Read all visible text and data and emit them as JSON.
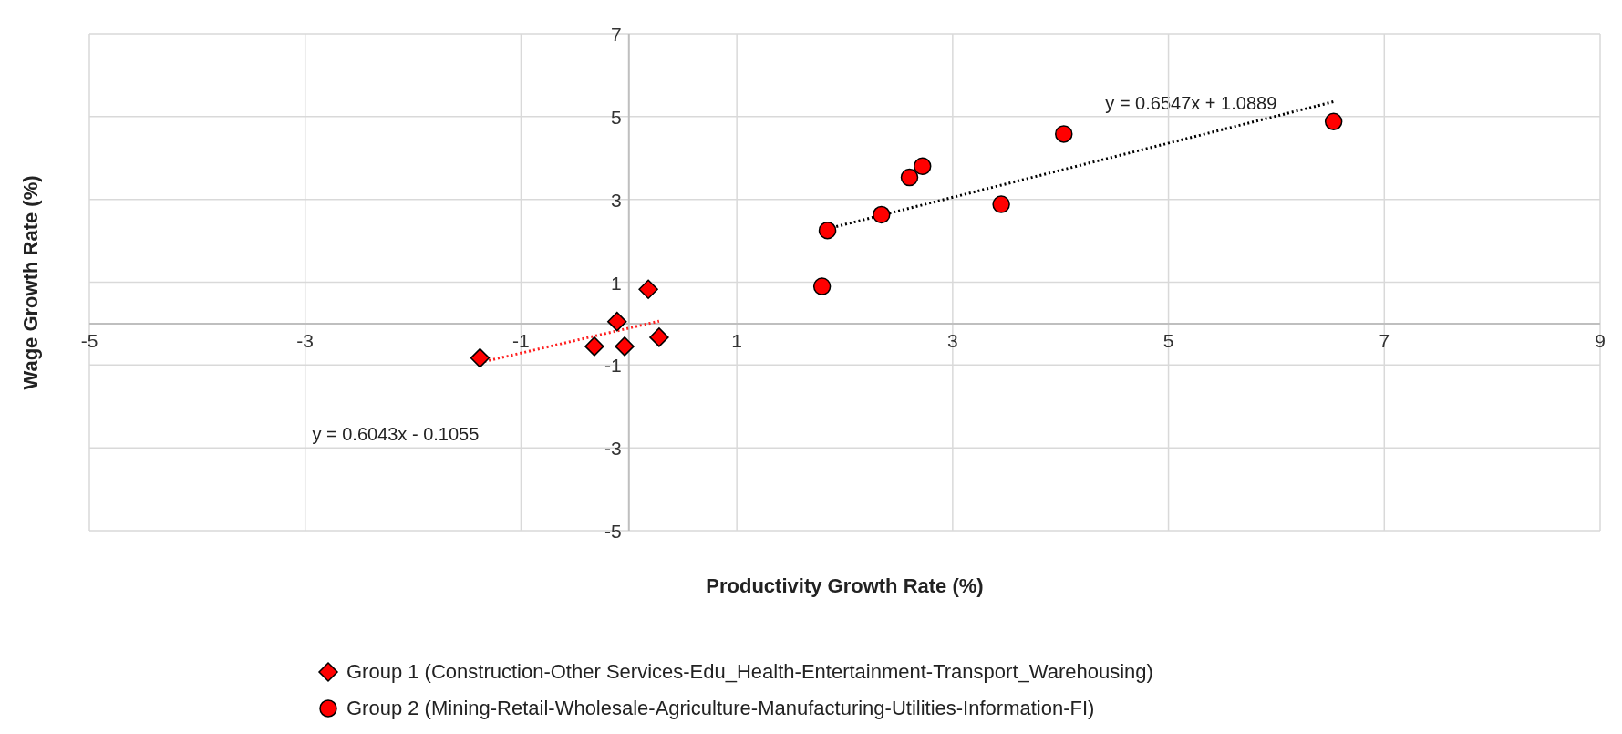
{
  "chart_data": {
    "type": "scatter",
    "xlabel": "Productivity Growth Rate (%)",
    "ylabel": "Wage Growth Rate (%)",
    "xlim": [
      -5,
      9
    ],
    "xticks": [
      -5,
      -3,
      -1,
      1,
      3,
      5,
      7,
      9
    ],
    "ylim": [
      -5,
      7
    ],
    "yticks": [
      -5,
      -3,
      -1,
      1,
      3,
      5,
      7
    ],
    "grid": true,
    "legend": "bottom",
    "series": [
      {
        "name": "Group 1 (Construction-Other Services-Edu_Health-Entertainment-Transport_Warehousing)",
        "type": "scatter",
        "marker": "diamond",
        "color": "#ff0000",
        "x": [
          -1.38,
          -0.32,
          -0.11,
          -0.04,
          0.18,
          0.28
        ],
        "values": [
          -0.83,
          -0.55,
          0.05,
          -0.55,
          0.83,
          -0.33
        ]
      },
      {
        "name": "Group 2 (Mining-Retail-Wholesale-Agriculture-Manufacturing-Utilities-Information-FI)",
        "type": "scatter",
        "marker": "circle",
        "color": "#ff0000",
        "x": [
          1.79,
          1.84,
          2.34,
          2.6,
          2.72,
          3.45,
          4.03,
          6.53
        ],
        "values": [
          0.9,
          2.25,
          2.63,
          3.53,
          3.8,
          2.88,
          4.58,
          4.88
        ]
      },
      {
        "type": "line",
        "color": "#ff2020",
        "line_style": "dotted",
        "marker": "none",
        "x": [
          -1.38,
          0.28
        ],
        "values": [
          -0.94,
          0.06
        ]
      },
      {
        "type": "line",
        "color": "#000000",
        "line_style": "dotted",
        "marker": "none",
        "x": [
          1.84,
          6.53
        ],
        "values": [
          2.29,
          5.36
        ]
      }
    ],
    "annotations": [
      "y = 0.6547x + 1.0889",
      "y = 0.6043x - 0.1055"
    ]
  }
}
